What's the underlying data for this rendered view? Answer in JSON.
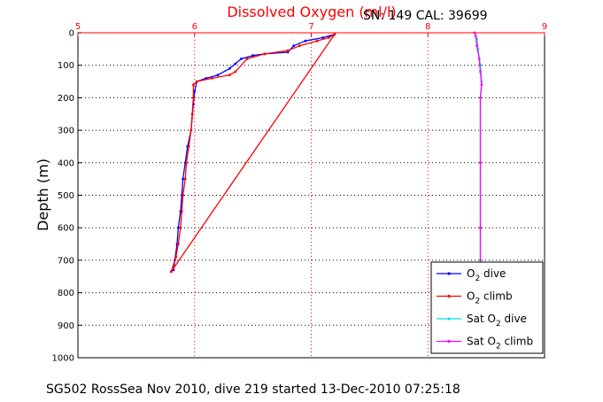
{
  "chart_data": {
    "type": "line",
    "title": "Dissolved Oxygen (ml/l)",
    "header_right": "SN: 149  CAL: 39699",
    "footer": "SG502 RossSea Nov 2010, dive 219 started 13-Dec-2010 07:25:18",
    "ylabel": "Depth (m)",
    "xlim": [
      5,
      9
    ],
    "ylim": [
      0,
      1000
    ],
    "y_reversed": true,
    "x_axis_position": "top",
    "x_ticks": [
      "5",
      "6",
      "7",
      "8",
      "9"
    ],
    "y_ticks": [
      "0",
      "100",
      "200",
      "300",
      "400",
      "500",
      "600",
      "700",
      "800",
      "900",
      "1000"
    ],
    "grid": true,
    "legend_position": "bottom-right",
    "legend": [
      {
        "base": "O",
        "sub": "2",
        "tail": " dive",
        "color": "#0000ff"
      },
      {
        "base": "O",
        "sub": "2",
        "tail": " climb",
        "color": "#ff0000"
      },
      {
        "base": "Sat O",
        "sub": "2",
        "tail": " dive",
        "color": "#00e0e0"
      },
      {
        "base": "Sat O",
        "sub": "2",
        "tail": " climb",
        "color": "#ff00ff"
      }
    ],
    "series": [
      {
        "name": "O2 dive",
        "color": "#0000ff",
        "points": [
          [
            7.2,
            5
          ],
          [
            7.1,
            15
          ],
          [
            6.95,
            25
          ],
          [
            6.85,
            40
          ],
          [
            6.8,
            60
          ],
          [
            6.6,
            65
          ],
          [
            6.5,
            70
          ],
          [
            6.4,
            80
          ],
          [
            6.35,
            95
          ],
          [
            6.3,
            110
          ],
          [
            6.2,
            130
          ],
          [
            6.1,
            140
          ],
          [
            6.02,
            150
          ],
          [
            6.0,
            180
          ],
          [
            5.99,
            220
          ],
          [
            5.97,
            300
          ],
          [
            5.94,
            350
          ],
          [
            5.92,
            400
          ],
          [
            5.9,
            450
          ],
          [
            5.89,
            500
          ],
          [
            5.88,
            550
          ],
          [
            5.86,
            600
          ],
          [
            5.85,
            650
          ],
          [
            5.83,
            700
          ],
          [
            5.82,
            730
          ]
        ]
      },
      {
        "name": "O2 climb",
        "color": "#ff0000",
        "points": [
          [
            5.8,
            735
          ],
          [
            5.84,
            690
          ],
          [
            5.86,
            650
          ],
          [
            5.88,
            600
          ],
          [
            5.89,
            550
          ],
          [
            5.9,
            500
          ],
          [
            5.92,
            450
          ],
          [
            5.93,
            400
          ],
          [
            5.95,
            350
          ],
          [
            5.97,
            300
          ],
          [
            5.98,
            250
          ],
          [
            5.99,
            200
          ],
          [
            5.99,
            160
          ],
          [
            6.02,
            150
          ],
          [
            6.15,
            140
          ],
          [
            6.3,
            130
          ],
          [
            6.35,
            120
          ],
          [
            6.45,
            80
          ],
          [
            6.6,
            65
          ],
          [
            6.8,
            55
          ],
          [
            6.9,
            40
          ],
          [
            7.05,
            25
          ],
          [
            7.15,
            15
          ],
          [
            7.2,
            5
          ],
          [
            5.8,
            735
          ]
        ]
      },
      {
        "name": "Sat O2 dive",
        "color": "#00e0e0",
        "points": [
          [
            8.4,
            0
          ],
          [
            8.42,
            20
          ],
          [
            8.43,
            50
          ],
          [
            8.45,
            100
          ],
          [
            8.46,
            150
          ],
          [
            8.45,
            200
          ],
          [
            8.45,
            400
          ],
          [
            8.45,
            600
          ],
          [
            8.45,
            700
          ]
        ]
      },
      {
        "name": "Sat O2 climb",
        "color": "#ff00ff",
        "points": [
          [
            8.45,
            720
          ],
          [
            8.45,
            600
          ],
          [
            8.45,
            400
          ],
          [
            8.45,
            200
          ],
          [
            8.46,
            160
          ],
          [
            8.45,
            120
          ],
          [
            8.44,
            80
          ],
          [
            8.42,
            40
          ],
          [
            8.41,
            10
          ],
          [
            8.4,
            0
          ]
        ]
      }
    ]
  }
}
